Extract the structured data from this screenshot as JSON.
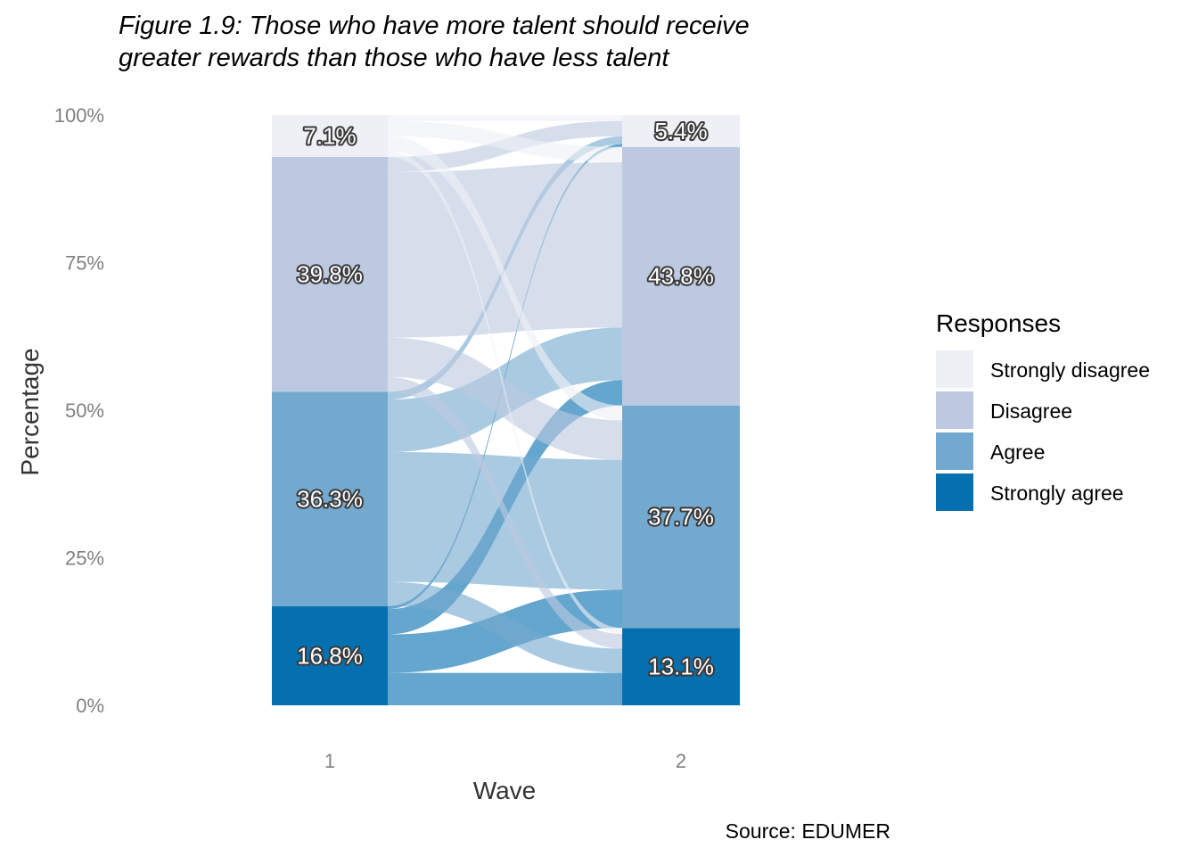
{
  "chart_data": {
    "type": "alluvial",
    "title_lines": [
      "Figure 1.9: Those who have more talent should receive",
      "greater rewards than those who have less talent"
    ],
    "xlabel": "Wave",
    "ylabel": "Percentage",
    "caption": "Source: EDUMER",
    "y_ticks": [
      "0%",
      "25%",
      "50%",
      "75%",
      "100%"
    ],
    "ylim": [
      0,
      100
    ],
    "categories": [
      "1",
      "2"
    ],
    "legend": {
      "title": "Responses",
      "items": [
        {
          "name": "Strongly disagree",
          "color": "#eff0f6"
        },
        {
          "name": "Disagree",
          "color": "#bdc9e1"
        },
        {
          "name": "Agree",
          "color": "#74a9cf"
        },
        {
          "name": "Strongly agree",
          "color": "#0570b0"
        }
      ]
    },
    "series": [
      {
        "name": "Strongly disagree",
        "values": [
          7.1,
          5.4
        ],
        "labels": [
          "7.1%",
          "5.4%"
        ]
      },
      {
        "name": "Disagree",
        "values": [
          39.8,
          43.8
        ],
        "labels": [
          "39.8%",
          "43.8%"
        ]
      },
      {
        "name": "Agree",
        "values": [
          36.3,
          37.7
        ],
        "labels": [
          "36.3%",
          "37.7%"
        ]
      },
      {
        "name": "Strongly agree",
        "values": [
          16.8,
          13.1
        ],
        "labels": [
          "16.8%",
          "13.1%"
        ]
      }
    ],
    "flows": [
      {
        "from": "Strongly agree",
        "to": "Strongly agree",
        "value": 5.5
      },
      {
        "from": "Strongly agree",
        "to": "Agree",
        "value": 6.5
      },
      {
        "from": "Strongly agree",
        "to": "Disagree",
        "value": 4.3
      },
      {
        "from": "Strongly agree",
        "to": "Strongly disagree",
        "value": 0.5
      },
      {
        "from": "Agree",
        "to": "Strongly agree",
        "value": 4.1
      },
      {
        "from": "Agree",
        "to": "Agree",
        "value": 22.0
      },
      {
        "from": "Agree",
        "to": "Disagree",
        "value": 8.9
      },
      {
        "from": "Agree",
        "to": "Strongly disagree",
        "value": 1.3
      },
      {
        "from": "Disagree",
        "to": "Strongly agree",
        "value": 2.5
      },
      {
        "from": "Disagree",
        "to": "Agree",
        "value": 6.7
      },
      {
        "from": "Disagree",
        "to": "Disagree",
        "value": 28.0
      },
      {
        "from": "Disagree",
        "to": "Strongly disagree",
        "value": 2.6
      },
      {
        "from": "Strongly disagree",
        "to": "Strongly agree",
        "value": 1.0
      },
      {
        "from": "Strongly disagree",
        "to": "Agree",
        "value": 2.5
      },
      {
        "from": "Strongly disagree",
        "to": "Disagree",
        "value": 2.6
      },
      {
        "from": "Strongly disagree",
        "to": "Strongly disagree",
        "value": 1.0
      }
    ]
  }
}
